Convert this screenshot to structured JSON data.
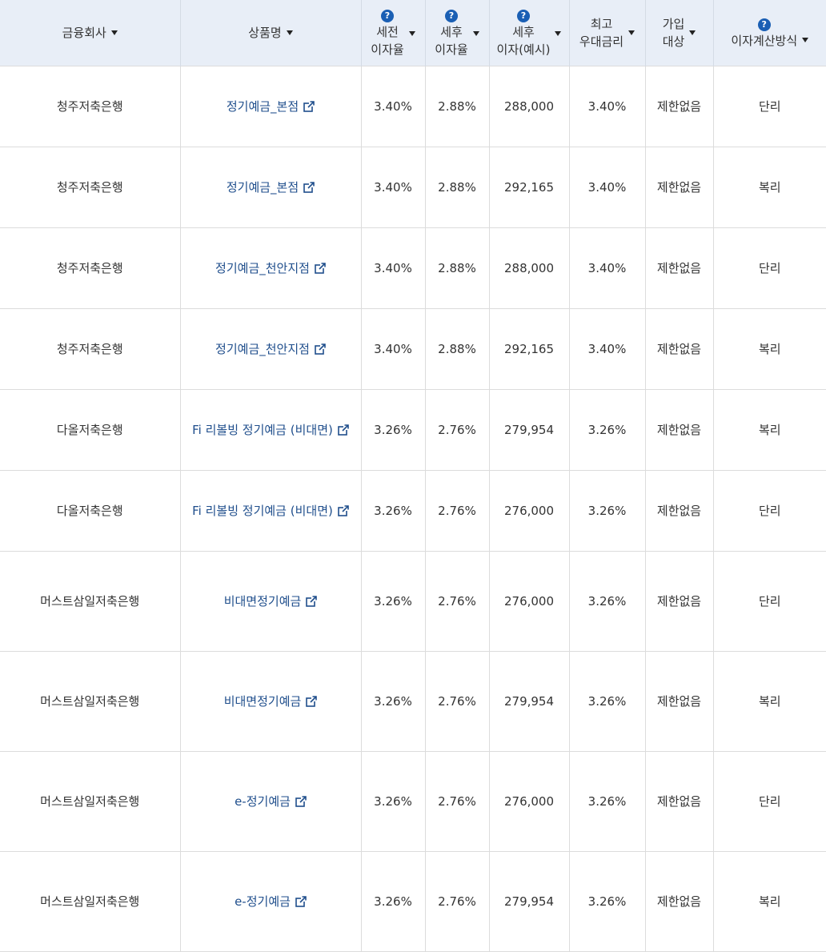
{
  "header": {
    "company": "금융회사",
    "product": "상품명",
    "pretax_rate": "세전\n이자율",
    "aftertax_rate": "세후\n이자율",
    "aftertax_interest": "세후\n이자(예시)",
    "max_pref_rate": "최고\n우대금리",
    "eligibility": "가입\n대상",
    "calc_method": "이자계산방식",
    "help_icon_text": "?"
  },
  "rows": [
    {
      "company": "청주저축은행",
      "product": "정기예금_본점",
      "pretax": "3.40%",
      "aftertax": "2.88%",
      "interest": "288,000",
      "max_rate": "3.40%",
      "eligibility": "제한없음",
      "method": "단리",
      "height": "short"
    },
    {
      "company": "청주저축은행",
      "product": "정기예금_본점",
      "pretax": "3.40%",
      "aftertax": "2.88%",
      "interest": "292,165",
      "max_rate": "3.40%",
      "eligibility": "제한없음",
      "method": "복리",
      "height": "short"
    },
    {
      "company": "청주저축은행",
      "product": "정기예금_천안지점",
      "pretax": "3.40%",
      "aftertax": "2.88%",
      "interest": "288,000",
      "max_rate": "3.40%",
      "eligibility": "제한없음",
      "method": "단리",
      "height": "short"
    },
    {
      "company": "청주저축은행",
      "product": "정기예금_천안지점",
      "pretax": "3.40%",
      "aftertax": "2.88%",
      "interest": "292,165",
      "max_rate": "3.40%",
      "eligibility": "제한없음",
      "method": "복리",
      "height": "short"
    },
    {
      "company": "다올저축은행",
      "product": "Fi 리볼빙 정기예금 (비대면)",
      "pretax": "3.26%",
      "aftertax": "2.76%",
      "interest": "279,954",
      "max_rate": "3.26%",
      "eligibility": "제한없음",
      "method": "복리",
      "height": "short"
    },
    {
      "company": "다올저축은행",
      "product": "Fi 리볼빙 정기예금 (비대면)",
      "pretax": "3.26%",
      "aftertax": "2.76%",
      "interest": "276,000",
      "max_rate": "3.26%",
      "eligibility": "제한없음",
      "method": "단리",
      "height": "short"
    },
    {
      "company": "머스트삼일저축은행",
      "product": "비대면정기예금",
      "pretax": "3.26%",
      "aftertax": "2.76%",
      "interest": "276,000",
      "max_rate": "3.26%",
      "eligibility": "제한없음",
      "method": "단리",
      "height": "tall"
    },
    {
      "company": "머스트삼일저축은행",
      "product": "비대면정기예금",
      "pretax": "3.26%",
      "aftertax": "2.76%",
      "interest": "279,954",
      "max_rate": "3.26%",
      "eligibility": "제한없음",
      "method": "복리",
      "height": "tall"
    },
    {
      "company": "머스트삼일저축은행",
      "product": "e-정기예금",
      "pretax": "3.26%",
      "aftertax": "2.76%",
      "interest": "276,000",
      "max_rate": "3.26%",
      "eligibility": "제한없음",
      "method": "단리",
      "height": "tall"
    },
    {
      "company": "머스트삼일저축은행",
      "product": "e-정기예금",
      "pretax": "3.26%",
      "aftertax": "2.76%",
      "interest": "279,954",
      "max_rate": "3.26%",
      "eligibility": "제한없음",
      "method": "복리",
      "height": "tall"
    }
  ],
  "colors": {
    "header_bg": "#e8eef7",
    "link": "#1f4e8c",
    "help_icon": "#1a5fb4"
  }
}
